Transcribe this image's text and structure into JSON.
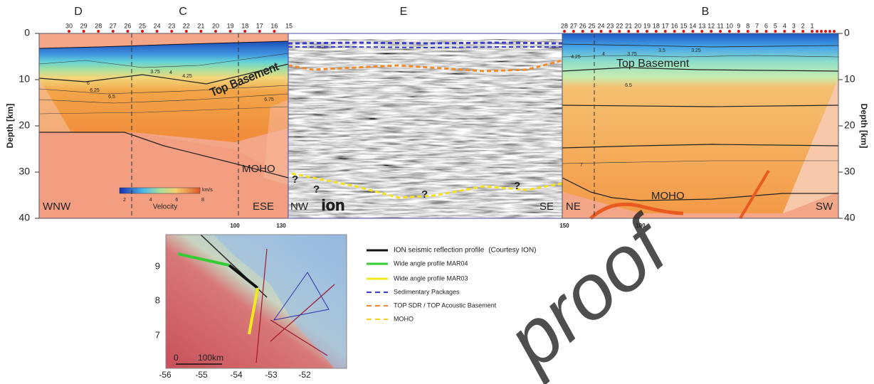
{
  "sections": {
    "letters": [
      "D",
      "C",
      "E",
      "B"
    ],
    "left_stations": [
      30,
      29,
      28,
      27,
      26,
      25,
      24,
      23,
      22,
      21,
      20,
      19,
      18,
      17,
      16,
      15
    ],
    "right_stations": [
      28,
      27,
      26,
      25,
      24,
      23,
      22,
      21,
      20,
      19,
      18,
      17,
      16,
      15,
      14,
      13,
      12,
      11,
      10,
      9,
      8,
      7,
      6,
      5,
      4,
      3,
      2,
      1
    ],
    "depth_axis": {
      "label": "Depth [km]",
      "ticks": [
        0,
        10,
        20,
        30,
        40
      ]
    },
    "left": {
      "west": "WNW",
      "east": "ESE",
      "moho": "MOHO",
      "top_basement": "Top Basement",
      "contours": [
        "3.75",
        "4",
        "4.25",
        "6",
        "6.25",
        "6.5",
        "6.75"
      ],
      "distance_ticks": [
        100,
        130
      ]
    },
    "colorbar": {
      "title": "Velocity",
      "unit": "km/s",
      "ticks": [
        2,
        4,
        6,
        8
      ]
    },
    "seismic": {
      "west": "NW",
      "east": "SE",
      "logo": "ion",
      "question_marks": [
        "?",
        "?",
        "?",
        "?"
      ]
    },
    "right": {
      "west": "NE",
      "east": "SW",
      "moho": "MOHO",
      "top_basement": "Top Basement",
      "contours": [
        "4.25",
        "4",
        "3.75",
        "3.5",
        "3.25",
        "6.5",
        "7"
      ],
      "distance_ticks": [
        150,
        100
      ]
    }
  },
  "map": {
    "lat_ticks": [
      9,
      8,
      7
    ],
    "lon_ticks": [
      -56,
      -55,
      -54,
      -53,
      -52
    ],
    "scale": [
      "0",
      "100km"
    ]
  },
  "legend": [
    {
      "label": "ION seismic reflection profile",
      "note": "(Courtesy ION)",
      "color": "#111111",
      "style": "solid"
    },
    {
      "label": "Wide angle profile  MAR04",
      "color": "#33cc33",
      "style": "solid"
    },
    {
      "label": "Wide angle profile  MAR03",
      "color": "#f2ea1a",
      "style": "solid"
    },
    {
      "label": "Sedimentary Packages",
      "color": "#3a3acc",
      "style": "dashed"
    },
    {
      "label": "TOP SDR / TOP Acoustic Basement",
      "color": "#f08a2a",
      "style": "dashed"
    },
    {
      "label": "MOHO",
      "color": "#f5d21a",
      "style": "dashed"
    }
  ],
  "watermark": "proof"
}
